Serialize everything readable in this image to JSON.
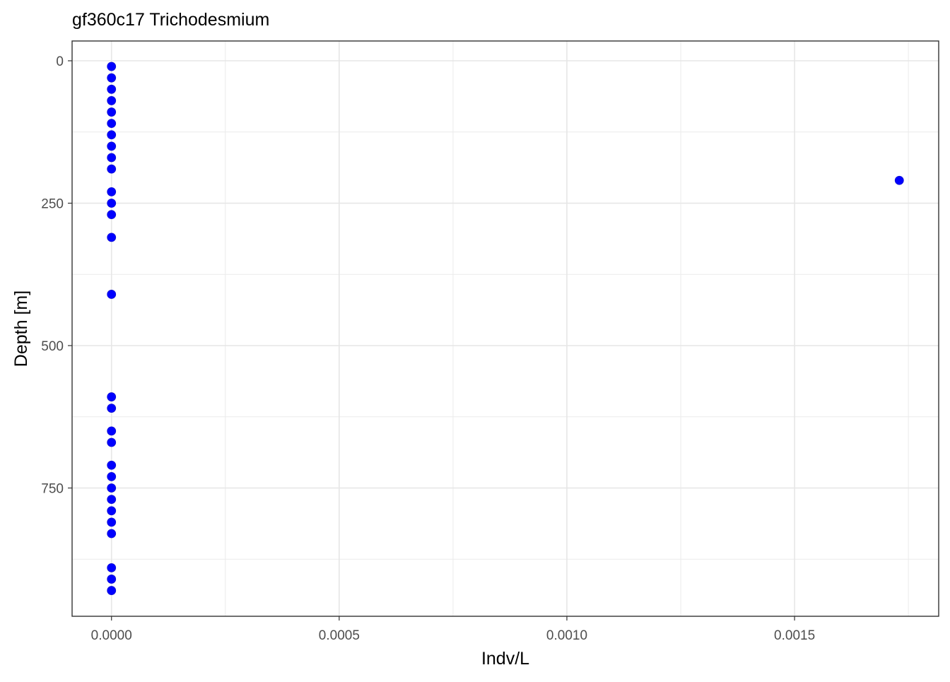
{
  "chart_data": {
    "type": "scatter",
    "title": "gf360c17 Trichodesmium",
    "xlabel": "Indv/L",
    "ylabel": "Depth [m]",
    "xlim": [
      -8.65e-05,
      0.0018165
    ],
    "ylim": [
      0,
      1000
    ],
    "y_reversed": true,
    "x_ticks": [
      "0.0000",
      "0.0005",
      "0.0010",
      "0.0015"
    ],
    "x_tick_values": [
      0,
      0.0005,
      0.001,
      0.0015
    ],
    "y_ticks": [
      "0",
      "250",
      "500",
      "750"
    ],
    "y_tick_values": [
      0,
      250,
      500,
      750
    ],
    "grid": true,
    "point_color": "#0000ff",
    "points": [
      {
        "x": 0,
        "y": 10
      },
      {
        "x": 0,
        "y": 30
      },
      {
        "x": 0,
        "y": 50
      },
      {
        "x": 0,
        "y": 70
      },
      {
        "x": 0,
        "y": 90
      },
      {
        "x": 0,
        "y": 110
      },
      {
        "x": 0,
        "y": 130
      },
      {
        "x": 0,
        "y": 150
      },
      {
        "x": 0,
        "y": 170
      },
      {
        "x": 0,
        "y": 190
      },
      {
        "x": 0,
        "y": 230
      },
      {
        "x": 0,
        "y": 250
      },
      {
        "x": 0,
        "y": 270
      },
      {
        "x": 0,
        "y": 310
      },
      {
        "x": 0.00173,
        "y": 210
      },
      {
        "x": 0,
        "y": 410
      },
      {
        "x": 0,
        "y": 590
      },
      {
        "x": 0,
        "y": 610
      },
      {
        "x": 0,
        "y": 650
      },
      {
        "x": 0,
        "y": 670
      },
      {
        "x": 0,
        "y": 710
      },
      {
        "x": 0,
        "y": 730
      },
      {
        "x": 0,
        "y": 750
      },
      {
        "x": 0,
        "y": 770
      },
      {
        "x": 0,
        "y": 790
      },
      {
        "x": 0,
        "y": 810
      },
      {
        "x": 0,
        "y": 830
      },
      {
        "x": 0,
        "y": 890
      },
      {
        "x": 0,
        "y": 910
      },
      {
        "x": 0,
        "y": 930
      }
    ]
  }
}
